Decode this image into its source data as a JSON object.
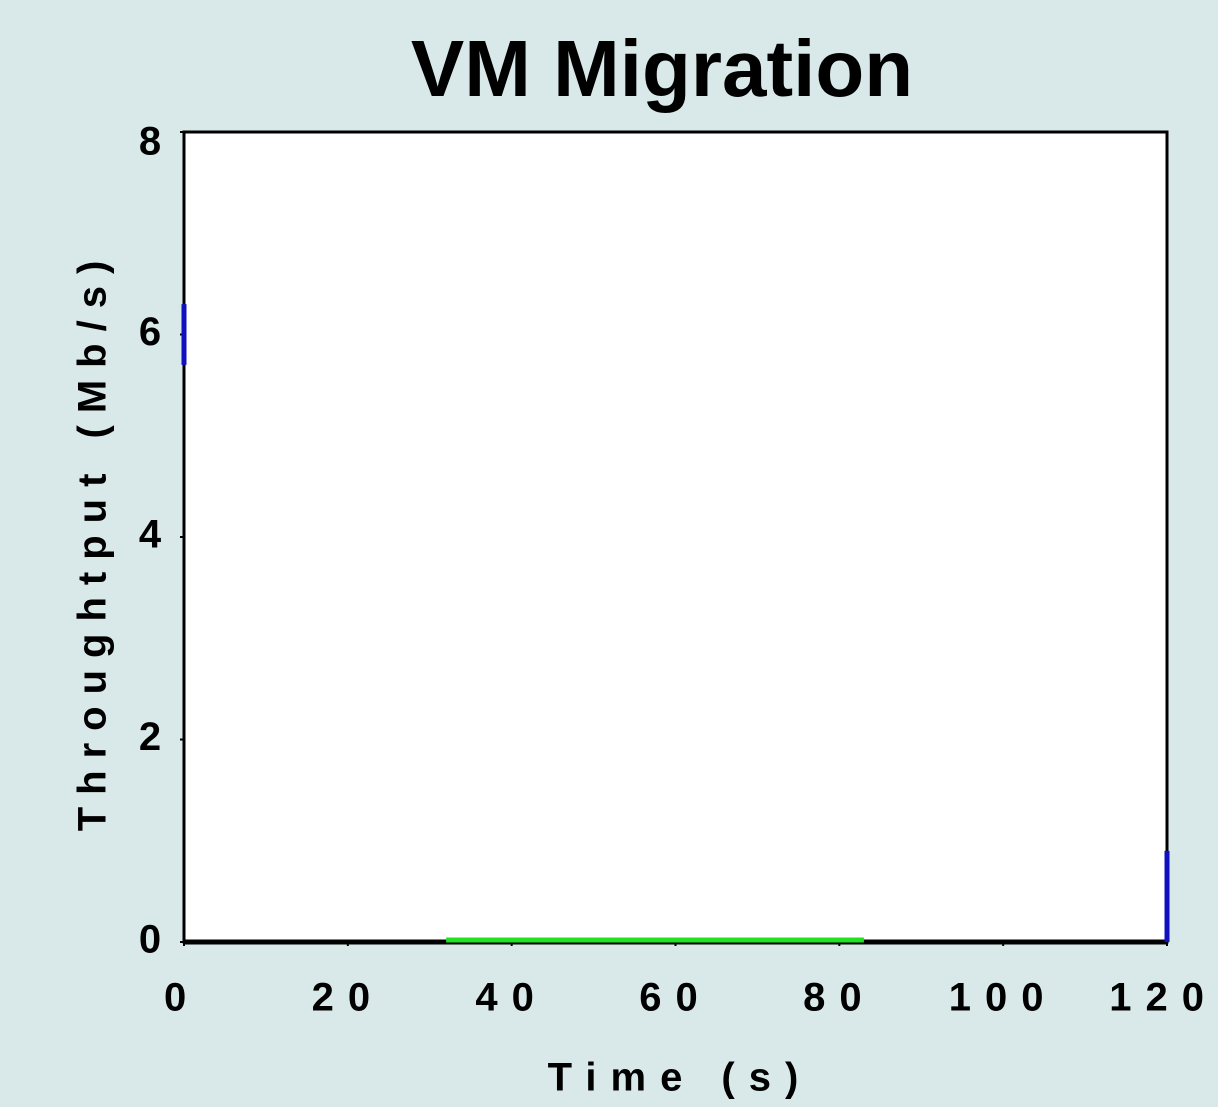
{
  "chart_data": {
    "type": "line",
    "title": "VM Migration",
    "xlabel": "Time (s)",
    "ylabel": "Throughtput (Mb/s)",
    "xlim": [
      0,
      120
    ],
    "ylim": [
      0,
      8
    ],
    "xticks": [
      0,
      20,
      40,
      60,
      80,
      100,
      120
    ],
    "yticks": [
      0,
      2,
      4,
      6,
      8
    ],
    "grid": false,
    "series": [
      {
        "color": "#000000",
        "x": [
          0,
          120
        ],
        "values": [
          0,
          0
        ]
      },
      {
        "color": "#22e022",
        "x": [
          32,
          83
        ],
        "values": [
          0.02,
          0.02
        ]
      },
      {
        "color": "#1010c0",
        "x": [
          0,
          0
        ],
        "values": [
          5.7,
          6.3
        ]
      },
      {
        "color": "#1010c0",
        "x": [
          120,
          120
        ],
        "values": [
          0,
          0.9
        ]
      }
    ]
  }
}
